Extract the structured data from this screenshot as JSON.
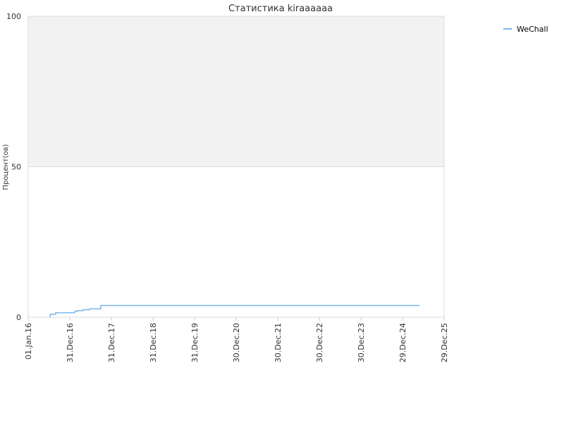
{
  "chart_data": {
    "type": "line",
    "title": "Статистика kiraaaaaa",
    "y_label": "Процент(ов)",
    "step": "after",
    "grid": true,
    "legend_position": "top-right",
    "bands": [
      {
        "from": 50,
        "to": 100,
        "color": "#f2f2f2"
      }
    ],
    "xlim": [
      "2016-01-01",
      "2025-12-29"
    ],
    "xticks": [
      {
        "value": "2016-01-01",
        "label": "01.Jan.16"
      },
      {
        "value": "2016-12-31",
        "label": "31.Dec.16"
      },
      {
        "value": "2017-12-31",
        "label": "31.Dec.17"
      },
      {
        "value": "2018-12-31",
        "label": "31.Dec.18"
      },
      {
        "value": "2019-12-31",
        "label": "31.Dec.19"
      },
      {
        "value": "2020-12-30",
        "label": "30.Dec.20"
      },
      {
        "value": "2021-12-30",
        "label": "30.Dec.21"
      },
      {
        "value": "2022-12-30",
        "label": "30.Dec.22"
      },
      {
        "value": "2023-12-30",
        "label": "30.Dec.23"
      },
      {
        "value": "2024-12-29",
        "label": "29.Dec.24"
      },
      {
        "value": "2025-12-29",
        "label": "29.Dec.25"
      }
    ],
    "ylim": [
      0,
      100
    ],
    "yticks": [
      0,
      50,
      100
    ],
    "x": [
      "2016-07-10",
      "2016-07-12",
      "2016-08-29",
      "2017-02-12",
      "2017-03-10",
      "2017-04-28",
      "2017-06-22",
      "2017-09-29",
      "2025-05-26"
    ],
    "series": [
      {
        "name": "WeChall",
        "color": "#7cb5ec",
        "values": [
          0,
          1,
          1.5,
          2,
          2.2,
          2.5,
          2.8,
          3.9,
          3.9
        ]
      }
    ]
  }
}
